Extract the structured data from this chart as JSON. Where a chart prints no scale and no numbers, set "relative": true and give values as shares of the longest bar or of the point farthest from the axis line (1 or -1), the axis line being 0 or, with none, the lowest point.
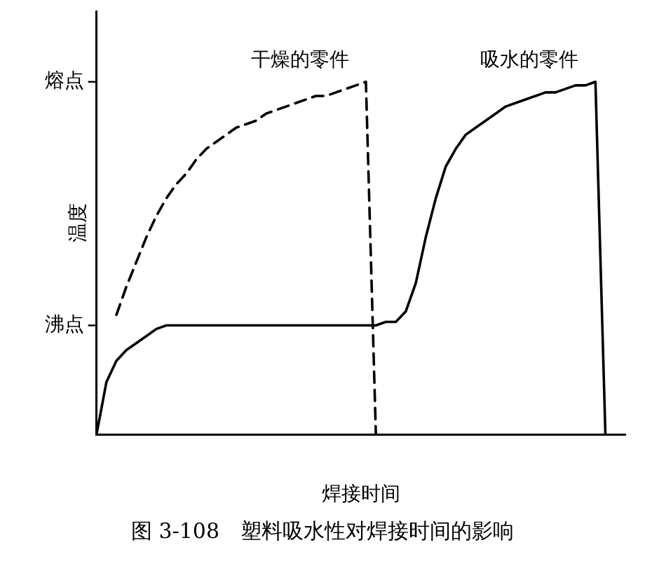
{
  "chart_data": {
    "type": "line",
    "xlabel": "焊接时间",
    "ylabel": "温度",
    "annotations": [
      "图 3-108　塑料吸水性对焊接时间的影响",
      "沸点",
      "熔点"
    ],
    "categories": [
      null,
      null,
      null,
      null,
      null,
      null,
      null,
      null,
      null,
      null,
      null,
      null,
      null,
      null,
      null,
      null,
      null,
      null,
      null,
      null,
      null,
      null,
      null,
      null,
      null,
      null,
      null,
      null,
      null,
      null,
      null,
      null,
      null,
      null,
      null,
      null,
      null,
      null,
      null,
      null,
      null,
      null,
      null,
      null,
      null,
      null,
      null,
      null,
      null,
      null,
      null,
      null,
      null,
      null
    ],
    "relative": true,
    "grid": false,
    "legend": false,
    "marker": "none",
    "series": [
      {
        "name": "干燥的零件",
        "color": "#000000",
        "line_style": "dashed",
        "values": [
          null,
          null,
          0.34,
          0.42,
          0.49,
          0.56,
          0.62,
          0.67,
          0.71,
          0.74,
          0.78,
          0.81,
          0.83,
          0.85,
          0.87,
          0.88,
          0.89,
          0.91,
          0.92,
          0.93,
          0.94,
          0.95,
          0.96,
          0.96,
          0.97,
          0.98,
          0.99,
          1,
          0,
          null,
          null,
          null,
          null,
          null,
          null,
          null,
          null,
          null,
          null,
          null,
          null,
          null,
          null,
          null,
          null,
          null,
          null,
          null,
          null,
          null,
          null,
          null,
          null,
          null
        ]
      },
      {
        "name": "吸水的零件",
        "color": "#000000",
        "line_style": "solid",
        "values": [
          0,
          0.15,
          0.21,
          0.24,
          0.26,
          0.28,
          0.3,
          0.31,
          0.31,
          0.31,
          0.31,
          0.31,
          0.31,
          0.31,
          0.31,
          0.31,
          0.31,
          0.31,
          0.31,
          0.31,
          0.31,
          0.31,
          0.31,
          0.31,
          0.31,
          0.31,
          0.31,
          0.31,
          0.31,
          0.32,
          0.32,
          0.35,
          0.43,
          0.56,
          0.67,
          0.76,
          0.81,
          0.85,
          0.87,
          0.89,
          0.91,
          0.93,
          0.94,
          0.95,
          0.96,
          0.97,
          0.97,
          0.98,
          0.99,
          0.99,
          1,
          0,
          null,
          null
        ]
      }
    ]
  }
}
